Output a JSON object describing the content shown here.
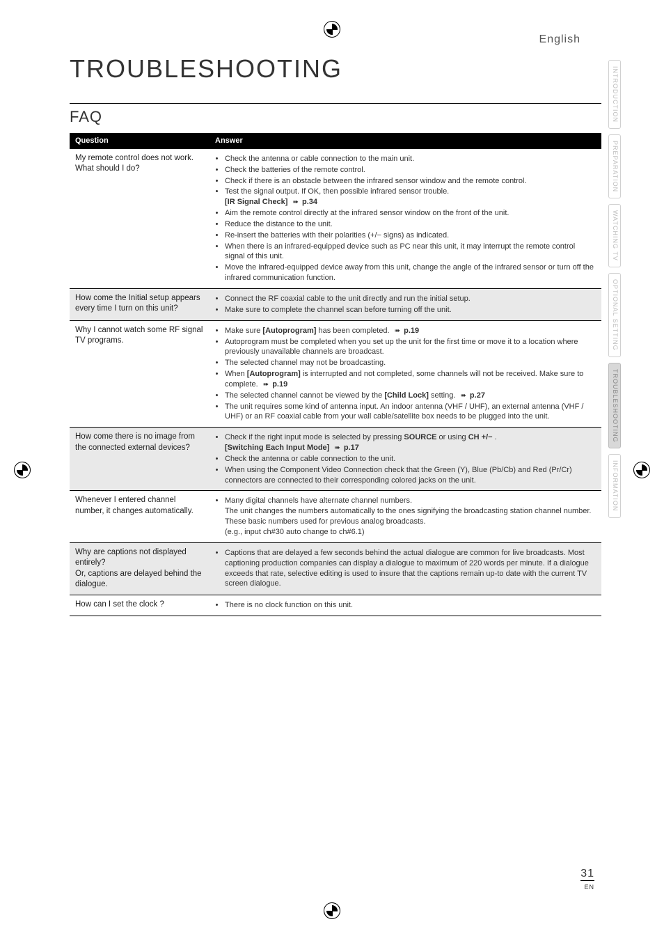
{
  "lang": "English",
  "title": "TROUBLESHOOTING",
  "section": "FAQ",
  "table": {
    "headers": [
      "Question",
      "Answer"
    ],
    "rows": [
      {
        "q": "My remote control does not work.\nWhat should I do?",
        "a_html": "<ul><li>Check the antenna or cable connection to the main unit.</li><li>Check the batteries of the remote control.</li><li>Check if there is an obstacle between the infrared sensor window and the remote control.</li><li>Test the signal output. If OK, then possible infrared sensor trouble.<br><span class='bold'>[IR Signal Check]</span> <span class='arrow'></span> <span class='bold'>p.34</span></li><li>Aim the remote control directly at the infrared sensor window on the front of the unit.</li><li>Reduce the distance to the unit.</li><li>Re-insert the batteries with their polarities (+/− signs) as indicated.</li><li>When there is an infrared-equipped device such as PC near this unit, it may interrupt the remote control signal of this unit.</li><li>Move the infrared-equipped device away from this unit, change the angle of the infrared sensor or turn off the infrared communication function.</li></ul>"
      },
      {
        "q": "How come the Initial setup appears every time I turn on this unit?",
        "a_html": "<ul><li>Connect the RF coaxial cable to the unit directly and run the initial setup.</li><li>Make sure to complete the channel scan before turning off the unit.</li></ul>",
        "alt": true
      },
      {
        "q": "Why I cannot watch some RF signal TV programs.",
        "a_html": "<ul><li>Make sure <span class='bold'>[Autoprogram]</span> has been completed. <span class='arrow'></span> <span class='bold'>p.19</span></li><li>Autoprogram must be completed when you set up the unit for the first time or move it to a location where previously unavailable channels are broadcast.</li><li>The selected channel may not be broadcasting.</li><li>When <span class='bold'>[Autoprogram]</span> is interrupted and not completed, some channels will not be received. Make sure to complete. <span class='arrow'></span> <span class='bold'>p.19</span></li><li>The selected channel cannot be viewed by the <span class='bold'>[Child Lock]</span> setting. <span class='arrow'></span> <span class='bold'>p.27</span></li><li>The unit requires some kind of antenna input. An indoor antenna (VHF / UHF), an external antenna (VHF / UHF) or an RF coaxial cable from your wall cable/satellite box needs to be plugged into the unit.</li></ul>"
      },
      {
        "q": "How come there is no image from the connected external devices?",
        "a_html": "<ul><li>Check if the right input mode is selected by pressing <span class='bold'>SOURCE</span> or using <span class='bold'>CH +/−</span> .<br><span class='bold'>[Switching Each Input Mode]</span> <span class='arrow'></span> <span class='bold'>p.17</span></li><li>Check the antenna or cable connection to the unit.</li><li>When using the Component Video Connection check that the Green (Y), Blue (Pb/Cb) and Red (Pr/Cr) connectors are connected to their corresponding colored jacks on the unit.</li></ul>",
        "alt": true
      },
      {
        "q": "Whenever I entered channel number, it changes automatically.",
        "a_html": "<ul><li>Many digital channels have alternate channel numbers.<br>The unit changes the numbers automatically to the ones signifying the broadcasting station channel number.<br>These basic numbers used for previous analog broadcasts.<br>(e.g., input ch#30 auto change to ch#6.1)</li></ul>"
      },
      {
        "q": "Why are captions not displayed entirely?\nOr, captions are delayed behind the dialogue.",
        "a_html": "<ul><li>Captions that are delayed a few seconds behind the actual dialogue are common for live broadcasts. Most captioning production companies can display a dialogue to maximum of 220 words per minute. If a dialogue exceeds that rate, selective editing is used to insure that the captions remain up-to date with the current TV screen dialogue.</li></ul>",
        "alt": true
      },
      {
        "q": "How can I set the clock ?",
        "a_html": "<ul><li>There is no clock function on this unit.</li></ul>"
      }
    ]
  },
  "tabs": [
    {
      "label": "INTRODUCTION",
      "active": false
    },
    {
      "label": "PREPARATION",
      "active": false
    },
    {
      "label": "WATCHING TV",
      "active": false
    },
    {
      "label": "OPTIONAL SETTING",
      "active": false
    },
    {
      "label": "TROUBLESHOOTING",
      "active": true
    },
    {
      "label": "INFORMATION",
      "active": false
    }
  ],
  "page_number": "31",
  "page_lang": "EN"
}
